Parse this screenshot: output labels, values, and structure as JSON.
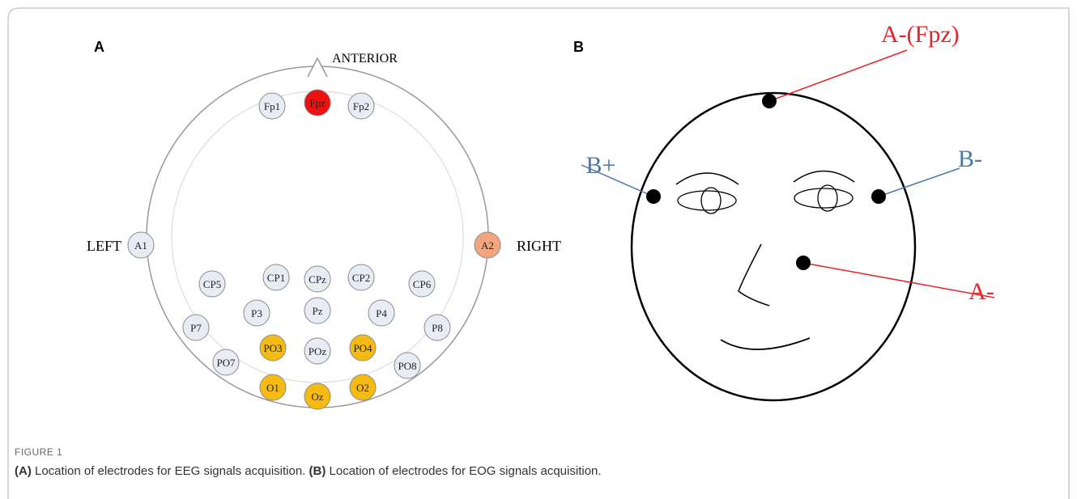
{
  "panel_a": {
    "tag": "A",
    "directions": {
      "anterior": "ANTERIOR",
      "left": "LEFT",
      "right": "RIGHT"
    },
    "electrodes": [
      {
        "label": "Fp1",
        "color": "#e8edf5"
      },
      {
        "label": "Fpz",
        "color": "#ee1111"
      },
      {
        "label": "Fp2",
        "color": "#e8edf5"
      },
      {
        "label": "A1",
        "color": "#e8edf5"
      },
      {
        "label": "A2",
        "color": "#f2a57e"
      },
      {
        "label": "CP5",
        "color": "#e8edf5"
      },
      {
        "label": "CP1",
        "color": "#e8edf5"
      },
      {
        "label": "CPz",
        "color": "#e8edf5"
      },
      {
        "label": "CP2",
        "color": "#e8edf5"
      },
      {
        "label": "CP6",
        "color": "#e8edf5"
      },
      {
        "label": "P3",
        "color": "#e8edf5"
      },
      {
        "label": "Pz",
        "color": "#e8edf5"
      },
      {
        "label": "P4",
        "color": "#e8edf5"
      },
      {
        "label": "P7",
        "color": "#e8edf5"
      },
      {
        "label": "P8",
        "color": "#e8edf5"
      },
      {
        "label": "PO7",
        "color": "#e8edf5"
      },
      {
        "label": "PO3",
        "color": "#f5bb12"
      },
      {
        "label": "POz",
        "color": "#e8edf5"
      },
      {
        "label": "PO4",
        "color": "#f5bb12"
      },
      {
        "label": "PO8",
        "color": "#e8edf5"
      },
      {
        "label": "O1",
        "color": "#f5bb12"
      },
      {
        "label": "Oz",
        "color": "#f5bb12"
      },
      {
        "label": "O2",
        "color": "#f5bb12"
      }
    ]
  },
  "panel_b": {
    "tag": "B",
    "electrodes": [
      {
        "label": "A-(Fpz)",
        "color": "#e8232a"
      },
      {
        "label": "B+",
        "color": "#4a78a8"
      },
      {
        "label": "B-",
        "color": "#4a78a8"
      },
      {
        "label": "A-",
        "color": "#e8232a"
      }
    ]
  },
  "caption": {
    "figure": "FIGURE 1",
    "a_tag": "(A)",
    "a_text": "Location of electrodes for EEG signals acquisition.",
    "b_tag": "(B)",
    "b_text": "Location of electrodes for EOG signals acquisition."
  }
}
